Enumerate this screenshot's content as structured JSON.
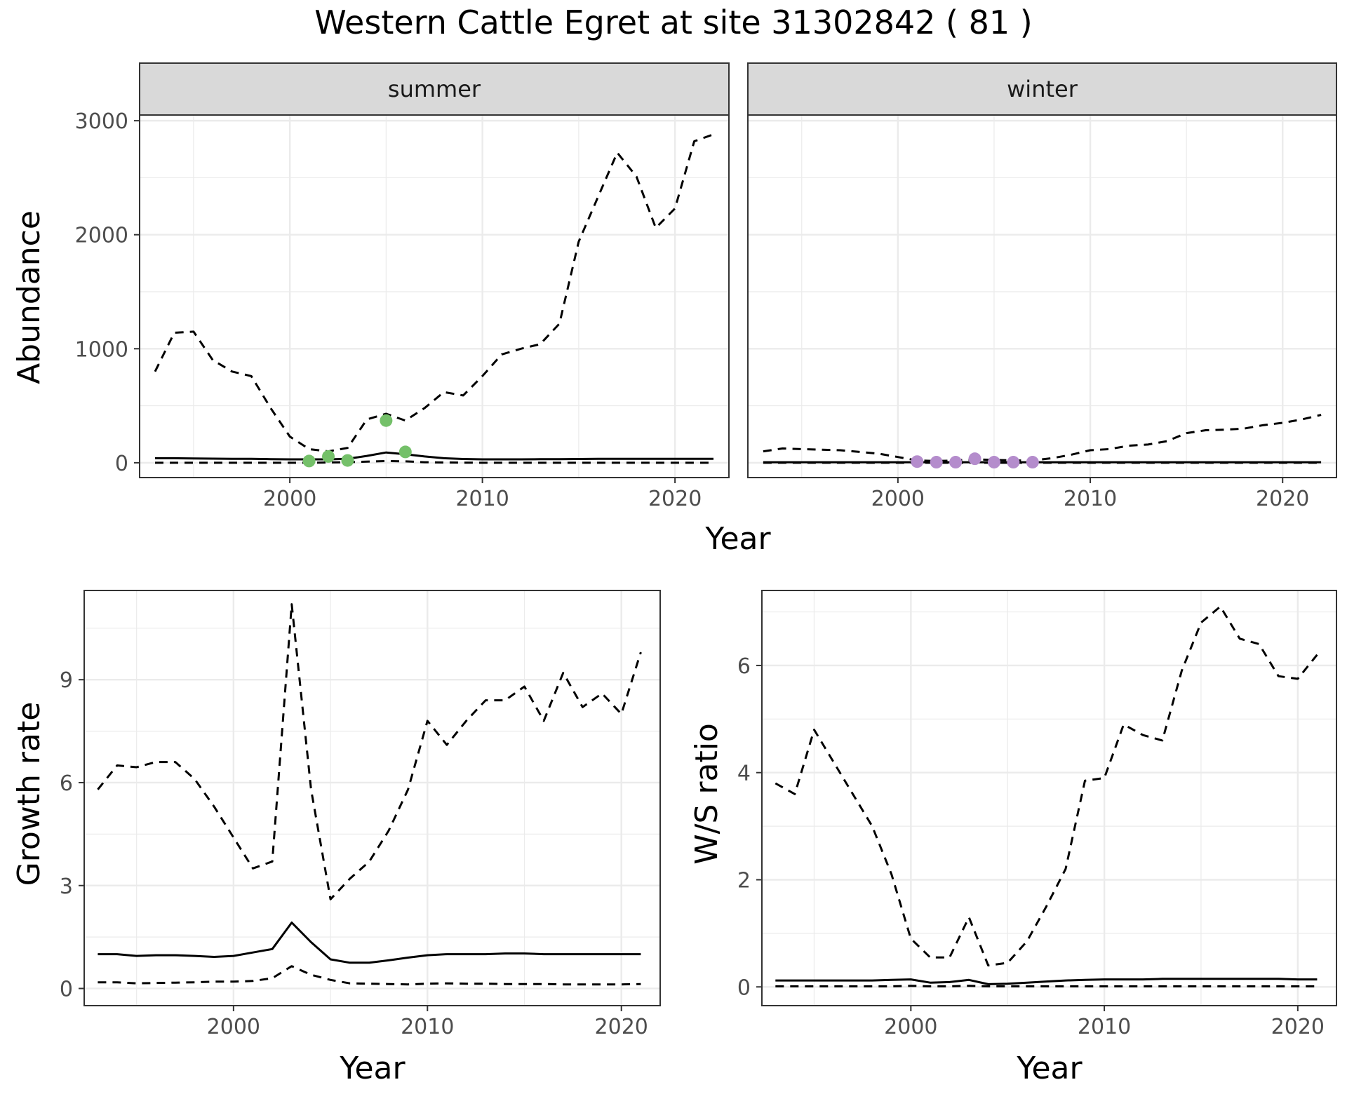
{
  "title": "Western Cattle Egret at site 31302842 ( 81 )",
  "colors": {
    "summer_points": "#74c069",
    "winter_points": "#b48ccc",
    "lines": "#000000",
    "grid": "#ebebeb",
    "strip_bg": "#d9d9d9",
    "panel_border": "#333333"
  },
  "chart_data": [
    {
      "type": "line",
      "id": "abundance",
      "facets": [
        "summer",
        "winter"
      ],
      "xlabel": "Year",
      "ylabel": "Abundance",
      "xlim": [
        1992.2,
        2022.8
      ],
      "ylim": [
        -130,
        3050
      ],
      "x_ticks": [
        2000,
        2010,
        2020
      ],
      "x_tick_labels": [
        "2000",
        "2010",
        "2020"
      ],
      "y_ticks": [
        0,
        1000,
        2000,
        3000
      ],
      "y_tick_labels": [
        "0",
        "1000",
        "2000",
        "3000"
      ],
      "grid": true,
      "panels": [
        {
          "facet": "summer",
          "x": [
            1993,
            1994,
            1995,
            1996,
            1997,
            1998,
            1999,
            2000,
            2001,
            2002,
            2003,
            2004,
            2005,
            2006,
            2007,
            2008,
            2009,
            2010,
            2011,
            2012,
            2013,
            2014,
            2015,
            2016,
            2017,
            2018,
            2019,
            2020,
            2021,
            2022
          ],
          "series": [
            {
              "style": "solid",
              "values": [
                40,
                40,
                38,
                36,
                35,
                34,
                32,
                30,
                30,
                30,
                35,
                60,
                90,
                75,
                55,
                40,
                33,
                30,
                30,
                30,
                31,
                32,
                33,
                34,
                35,
                35,
                35,
                35,
                35,
                35
              ]
            },
            {
              "style": "dashed",
              "values": [
                800,
                1140,
                1150,
                900,
                800,
                760,
                480,
                230,
                120,
                100,
                130,
                380,
                430,
                370,
                480,
                620,
                590,
                760,
                950,
                1000,
                1040,
                1220,
                1940,
                2330,
                2720,
                2510,
                2060,
                2230,
                2820,
                2880
              ]
            },
            {
              "style": "dashed",
              "values": [
                0,
                0,
                0,
                0,
                0,
                0,
                0,
                0,
                0,
                2,
                5,
                10,
                15,
                12,
                5,
                2,
                1,
                0,
                0,
                0,
                0,
                0,
                0,
                0,
                0,
                0,
                0,
                0,
                0,
                0
              ]
            }
          ],
          "points": [
            {
              "x": 2001,
              "y": 15
            },
            {
              "x": 2002,
              "y": 55
            },
            {
              "x": 2003,
              "y": 20
            },
            {
              "x": 2005,
              "y": 370
            },
            {
              "x": 2006,
              "y": 95
            }
          ]
        },
        {
          "facet": "winter",
          "x": [
            1993,
            1994,
            1995,
            1996,
            1997,
            1998,
            1999,
            2000,
            2001,
            2002,
            2003,
            2004,
            2005,
            2006,
            2007,
            2008,
            2009,
            2010,
            2011,
            2012,
            2013,
            2014,
            2015,
            2016,
            2017,
            2018,
            2019,
            2020,
            2021,
            2022
          ],
          "series": [
            {
              "style": "solid",
              "values": [
                5,
                5,
                5,
                5,
                5,
                5,
                5,
                5,
                5,
                5,
                5,
                5,
                5,
                5,
                5,
                5,
                5,
                5,
                5,
                5,
                5,
                5,
                5,
                5,
                5,
                5,
                5,
                5,
                5,
                5
              ]
            },
            {
              "style": "dashed",
              "values": [
                100,
                125,
                120,
                115,
                110,
                95,
                80,
                50,
                20,
                15,
                20,
                30,
                25,
                20,
                20,
                40,
                70,
                110,
                120,
                150,
                160,
                190,
                260,
                285,
                290,
                300,
                330,
                350,
                380,
                420
              ]
            },
            {
              "style": "dashed",
              "values": [
                0,
                0,
                0,
                0,
                0,
                0,
                0,
                0,
                0,
                0,
                0,
                0,
                0,
                0,
                0,
                0,
                0,
                0,
                0,
                0,
                0,
                0,
                0,
                0,
                0,
                0,
                0,
                0,
                0,
                0
              ]
            }
          ],
          "points": [
            {
              "x": 2001,
              "y": 10
            },
            {
              "x": 2002,
              "y": 5
            },
            {
              "x": 2003,
              "y": 5
            },
            {
              "x": 2004,
              "y": 35
            },
            {
              "x": 2005,
              "y": 5
            },
            {
              "x": 2006,
              "y": 5
            },
            {
              "x": 2007,
              "y": 5
            }
          ]
        }
      ]
    },
    {
      "type": "line",
      "id": "growth",
      "xlabel": "Year",
      "ylabel": "Growth rate",
      "xlim": [
        1992.3,
        2022.0
      ],
      "ylim": [
        -0.5,
        11.6
      ],
      "x_ticks": [
        2000,
        2010,
        2020
      ],
      "x_tick_labels": [
        "2000",
        "2010",
        "2020"
      ],
      "y_ticks": [
        0,
        3,
        6,
        9
      ],
      "y_tick_labels": [
        "0",
        "3",
        "6",
        "9"
      ],
      "grid": true,
      "x": [
        1993,
        1994,
        1995,
        1996,
        1997,
        1998,
        1999,
        2000,
        2001,
        2002,
        2003,
        2004,
        2005,
        2006,
        2007,
        2008,
        2009,
        2010,
        2011,
        2012,
        2013,
        2014,
        2015,
        2016,
        2017,
        2018,
        2019,
        2020,
        2021
      ],
      "series": [
        {
          "style": "solid",
          "values": [
            1.0,
            1.0,
            0.95,
            0.97,
            0.97,
            0.95,
            0.92,
            0.95,
            1.05,
            1.15,
            1.92,
            1.35,
            0.85,
            0.75,
            0.75,
            0.82,
            0.9,
            0.97,
            1.0,
            1.0,
            1.0,
            1.02,
            1.02,
            1.0,
            1.0,
            1.0,
            1.0,
            1.0,
            1.0
          ]
        },
        {
          "style": "dashed",
          "values": [
            5.8,
            6.5,
            6.45,
            6.6,
            6.6,
            6.1,
            5.3,
            4.4,
            3.5,
            3.7,
            11.2,
            5.8,
            2.6,
            3.2,
            3.7,
            4.6,
            5.8,
            7.8,
            7.1,
            7.8,
            8.4,
            8.4,
            8.8,
            7.8,
            9.2,
            8.2,
            8.6,
            8.0,
            9.8
          ]
        },
        {
          "style": "dashed",
          "values": [
            0.18,
            0.18,
            0.15,
            0.16,
            0.17,
            0.18,
            0.2,
            0.2,
            0.22,
            0.3,
            0.65,
            0.4,
            0.25,
            0.15,
            0.14,
            0.13,
            0.12,
            0.14,
            0.15,
            0.14,
            0.14,
            0.13,
            0.13,
            0.13,
            0.12,
            0.12,
            0.12,
            0.12,
            0.13
          ]
        }
      ]
    },
    {
      "type": "line",
      "id": "ratio",
      "xlabel": "Year",
      "ylabel": "W/S ratio",
      "xlim": [
        1992.3,
        2022.0
      ],
      "ylim": [
        -0.35,
        7.4
      ],
      "x_ticks": [
        2000,
        2010,
        2020
      ],
      "x_tick_labels": [
        "2000",
        "2010",
        "2020"
      ],
      "y_ticks": [
        0,
        2,
        4,
        6
      ],
      "y_tick_labels": [
        "0",
        "2",
        "4",
        "6"
      ],
      "grid": true,
      "x": [
        1993,
        1994,
        1995,
        1996,
        1997,
        1998,
        1999,
        2000,
        2001,
        2002,
        2003,
        2004,
        2005,
        2006,
        2007,
        2008,
        2009,
        2010,
        2011,
        2012,
        2013,
        2014,
        2015,
        2016,
        2017,
        2018,
        2019,
        2020,
        2021
      ],
      "series": [
        {
          "style": "solid",
          "values": [
            0.12,
            0.12,
            0.12,
            0.12,
            0.12,
            0.12,
            0.13,
            0.14,
            0.08,
            0.09,
            0.13,
            0.05,
            0.06,
            0.08,
            0.1,
            0.12,
            0.13,
            0.14,
            0.14,
            0.14,
            0.15,
            0.15,
            0.15,
            0.15,
            0.15,
            0.15,
            0.15,
            0.14,
            0.14
          ]
        },
        {
          "style": "dashed",
          "values": [
            3.8,
            3.6,
            4.8,
            4.2,
            3.6,
            3.0,
            2.1,
            0.9,
            0.55,
            0.55,
            1.3,
            0.4,
            0.45,
            0.85,
            1.5,
            2.2,
            3.85,
            3.9,
            4.9,
            4.7,
            4.6,
            5.9,
            6.8,
            7.1,
            6.5,
            6.4,
            5.8,
            5.75,
            6.2
          ]
        },
        {
          "style": "dashed",
          "values": [
            0.01,
            0.01,
            0.01,
            0.01,
            0.01,
            0.01,
            0.01,
            0.02,
            0.01,
            0.01,
            0.02,
            0.01,
            0.01,
            0.01,
            0.01,
            0.01,
            0.01,
            0.01,
            0.01,
            0.01,
            0.01,
            0.01,
            0.01,
            0.01,
            0.01,
            0.01,
            0.01,
            0.01,
            0.01
          ]
        }
      ]
    }
  ]
}
